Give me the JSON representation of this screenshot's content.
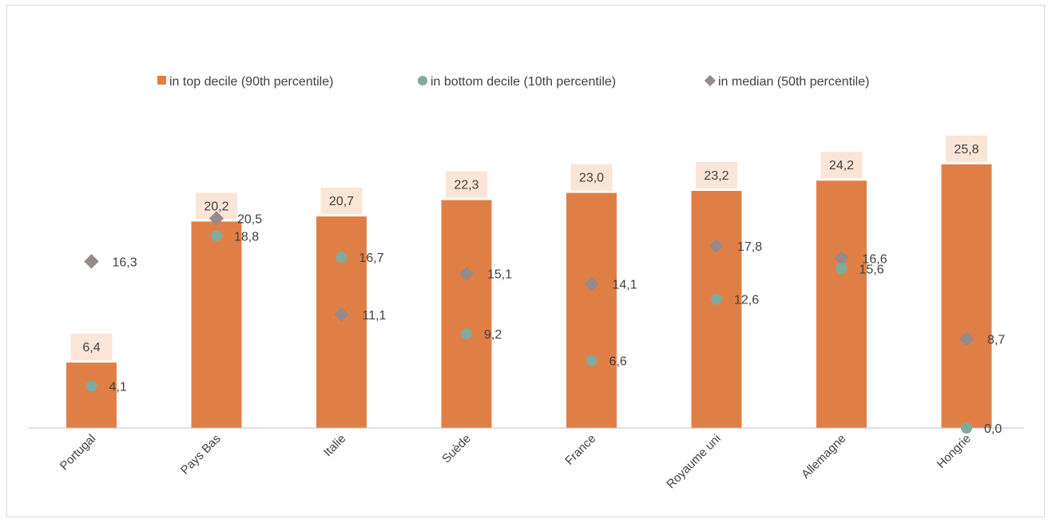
{
  "chart_data": {
    "type": "bar",
    "categories": [
      "Portugal",
      "Pays Bas",
      "Italie",
      "Suède",
      "France",
      "Royaume uni",
      "Allemagne",
      "Hongrie"
    ],
    "series": [
      {
        "name": "in top decile (90th percentile)",
        "kind": "bar",
        "values": [
          6.4,
          20.2,
          20.7,
          22.3,
          23.0,
          23.2,
          24.2,
          25.8
        ],
        "labels": [
          "6,4",
          "20,2",
          "20,7",
          "22,3",
          "23,0",
          "23,2",
          "24,2",
          "25,8"
        ],
        "color": "#e07f45"
      },
      {
        "name": "in bottom decile (10th percentile)",
        "kind": "marker-circle",
        "values": [
          4.1,
          18.8,
          16.7,
          9.2,
          6.6,
          12.6,
          15.6,
          0.0
        ],
        "labels": [
          "4,1",
          "18,8",
          "16,7",
          "9,2",
          "6,6",
          "12,6",
          "15,6",
          "0,0"
        ],
        "color": "#7eaa9f"
      },
      {
        "name": "in median (50th percentile)",
        "kind": "marker-diamond",
        "values": [
          16.3,
          20.5,
          11.1,
          15.1,
          14.1,
          17.8,
          16.6,
          8.7
        ],
        "labels": [
          "16,3",
          "20,5",
          "11,1",
          "15,1",
          "14,1",
          "17,8",
          "16,6",
          "8,7"
        ],
        "color": "#968a8a"
      }
    ],
    "ylim": [
      0,
      30
    ],
    "grid": false,
    "legend": "top",
    "label_box_color": "#fbe5d6"
  }
}
